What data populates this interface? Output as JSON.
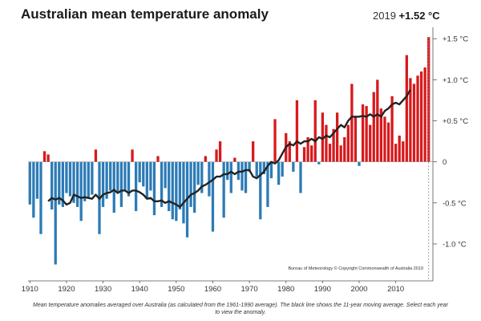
{
  "page": {
    "title": "Australian mean temperature anomaly",
    "selected_year": "2019",
    "selected_value": "+1.52 °C",
    "caption": "Mean temperature anomalies averaged over Australia (as calculated from the 1961-1990 average). The black line shows the 11-year moving average. Select each year to view the anomaly.",
    "credit": "Bureau of Meteorology © Copyright Commonwealth of Australia 2019"
  },
  "colors": {
    "positive": "#d7191c",
    "negative": "#2c7bb6",
    "line": "#222222",
    "axis": "#555555"
  },
  "chart_data": {
    "type": "bar",
    "title": "Australian mean temperature anomaly",
    "ylim": [
      -1.45,
      1.6
    ],
    "xlim": [
      1910,
      2019
    ],
    "x_tick_labels": [
      "1910",
      "1920",
      "1930",
      "1940",
      "1950",
      "1960",
      "1970",
      "1980",
      "1990",
      "2000",
      "2010"
    ],
    "x_tick_values": [
      1910,
      1920,
      1930,
      1940,
      1950,
      1960,
      1970,
      1980,
      1990,
      2000,
      2010
    ],
    "y_tick_labels": [
      "+1.5 °C",
      "+1.0 °C",
      "+0.5 °C",
      "0",
      "-0.5 °C",
      "-1.0 °C"
    ],
    "y_tick_values": [
      1.5,
      1.0,
      0.5,
      0,
      -0.5,
      -1.0
    ],
    "years": [
      1910,
      1911,
      1912,
      1913,
      1914,
      1915,
      1916,
      1917,
      1918,
      1919,
      1920,
      1921,
      1922,
      1923,
      1924,
      1925,
      1926,
      1927,
      1928,
      1929,
      1930,
      1931,
      1932,
      1933,
      1934,
      1935,
      1936,
      1937,
      1938,
      1939,
      1940,
      1941,
      1942,
      1943,
      1944,
      1945,
      1946,
      1947,
      1948,
      1949,
      1950,
      1951,
      1952,
      1953,
      1954,
      1955,
      1956,
      1957,
      1958,
      1959,
      1960,
      1961,
      1962,
      1963,
      1964,
      1965,
      1966,
      1967,
      1968,
      1969,
      1970,
      1971,
      1972,
      1973,
      1974,
      1975,
      1976,
      1977,
      1978,
      1979,
      1980,
      1981,
      1982,
      1983,
      1984,
      1985,
      1986,
      1987,
      1988,
      1989,
      1990,
      1991,
      1992,
      1993,
      1994,
      1995,
      1996,
      1997,
      1998,
      1999,
      2000,
      2001,
      2002,
      2003,
      2004,
      2005,
      2006,
      2007,
      2008,
      2009,
      2010,
      2011,
      2012,
      2013,
      2014,
      2015,
      2016,
      2017,
      2018,
      2019
    ],
    "values": [
      -0.52,
      -0.68,
      -0.45,
      -0.88,
      0.13,
      0.09,
      -0.58,
      -1.25,
      -0.52,
      -0.55,
      -0.38,
      -0.42,
      -0.5,
      -0.55,
      -0.72,
      -0.48,
      -0.45,
      -0.4,
      0.15,
      -0.88,
      -0.55,
      -0.45,
      -0.35,
      -0.62,
      -0.38,
      -0.55,
      -0.35,
      -0.42,
      0.15,
      -0.6,
      -0.25,
      -0.3,
      -0.45,
      -0.35,
      -0.65,
      0.07,
      -0.55,
      -0.32,
      -0.6,
      -0.7,
      -0.72,
      -0.58,
      -0.75,
      -0.92,
      -0.55,
      -0.62,
      -0.28,
      -0.38,
      0.07,
      -0.42,
      -0.85,
      0.15,
      0.25,
      -0.68,
      -0.22,
      -0.38,
      0.05,
      -0.22,
      -0.35,
      -0.38,
      -0.12,
      0.25,
      -0.18,
      -0.7,
      -0.15,
      -0.55,
      -0.2,
      0.52,
      -0.28,
      -0.18,
      0.35,
      0.25,
      -0.12,
      0.75,
      -0.38,
      0.18,
      0.3,
      0.2,
      0.75,
      -0.03,
      0.6,
      0.45,
      0.22,
      0.4,
      0.6,
      0.2,
      0.3,
      0.45,
      0.95,
      0.55,
      -0.05,
      0.7,
      0.68,
      0.45,
      0.85,
      1.0,
      0.65,
      0.55,
      0.48,
      0.8,
      0.22,
      0.32,
      0.25,
      1.3,
      1.02,
      0.95,
      1.05,
      1.1,
      1.15,
      1.52
    ],
    "series": [
      {
        "name": "11-year moving average",
        "x": [
          1915,
          1916,
          1917,
          1918,
          1919,
          1920,
          1921,
          1922,
          1923,
          1924,
          1925,
          1926,
          1927,
          1928,
          1929,
          1930,
          1931,
          1932,
          1933,
          1934,
          1935,
          1936,
          1937,
          1938,
          1939,
          1940,
          1941,
          1942,
          1943,
          1944,
          1945,
          1946,
          1947,
          1948,
          1949,
          1950,
          1951,
          1952,
          1953,
          1954,
          1955,
          1956,
          1957,
          1958,
          1959,
          1960,
          1961,
          1962,
          1963,
          1964,
          1965,
          1966,
          1967,
          1968,
          1969,
          1970,
          1971,
          1972,
          1973,
          1974,
          1975,
          1976,
          1977,
          1978,
          1979,
          1980,
          1981,
          1982,
          1983,
          1984,
          1985,
          1986,
          1987,
          1988,
          1989,
          1990,
          1991,
          1992,
          1993,
          1994,
          1995,
          1996,
          1997,
          1998,
          1999,
          2000,
          2001,
          2002,
          2003,
          2004,
          2005,
          2006,
          2007,
          2008,
          2009,
          2010,
          2011,
          2012,
          2013,
          2014
        ],
        "values": [
          -0.48,
          -0.44,
          -0.46,
          -0.44,
          -0.47,
          -0.52,
          -0.5,
          -0.4,
          -0.42,
          -0.44,
          -0.43,
          -0.44,
          -0.45,
          -0.4,
          -0.45,
          -0.4,
          -0.38,
          -0.37,
          -0.34,
          -0.38,
          -0.35,
          -0.35,
          -0.38,
          -0.35,
          -0.35,
          -0.37,
          -0.4,
          -0.45,
          -0.44,
          -0.48,
          -0.48,
          -0.47,
          -0.5,
          -0.48,
          -0.5,
          -0.52,
          -0.55,
          -0.5,
          -0.45,
          -0.4,
          -0.38,
          -0.35,
          -0.3,
          -0.28,
          -0.25,
          -0.22,
          -0.18,
          -0.18,
          -0.15,
          -0.15,
          -0.12,
          -0.15,
          -0.12,
          -0.12,
          -0.1,
          -0.1,
          -0.18,
          -0.2,
          -0.16,
          -0.12,
          -0.05,
          0.0,
          -0.02,
          0.02,
          0.1,
          0.18,
          0.22,
          0.2,
          0.25,
          0.22,
          0.25,
          0.25,
          0.28,
          0.25,
          0.3,
          0.28,
          0.32,
          0.3,
          0.35,
          0.4,
          0.45,
          0.42,
          0.5,
          0.55,
          0.55,
          0.55,
          0.56,
          0.55,
          0.58,
          0.55,
          0.58,
          0.55,
          0.62,
          0.65,
          0.7,
          0.72,
          0.7,
          0.75,
          0.8,
          0.88
        ]
      }
    ]
  }
}
